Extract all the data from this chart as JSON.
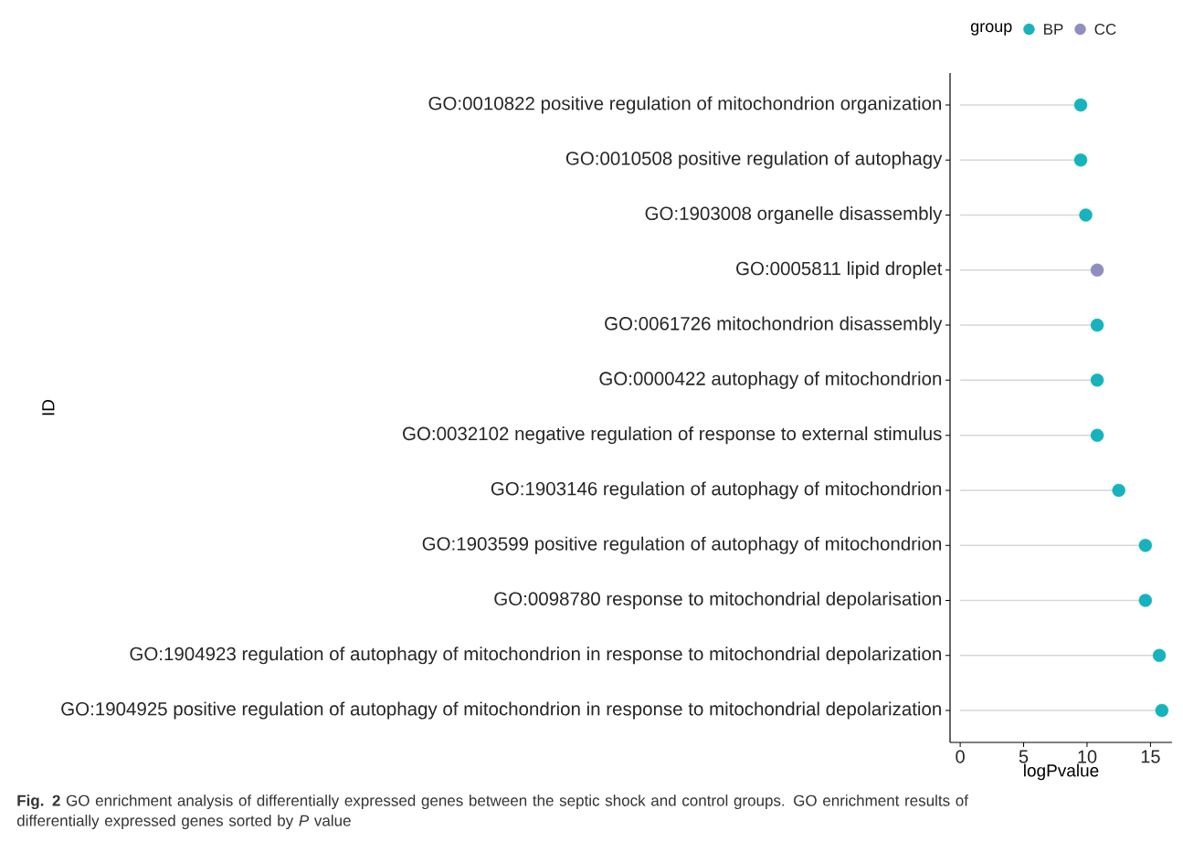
{
  "chart_data": {
    "type": "lollipop",
    "categories": [
      "GO:0010822 positive regulation of mitochondrion organization",
      "GO:0010508 positive regulation of autophagy",
      "GO:1903008 organelle disassembly",
      "GO:0005811 lipid droplet",
      "GO:0061726 mitochondrion disassembly",
      "GO:0000422 autophagy of mitochondrion",
      "GO:0032102 negative regulation of response to external stimulus",
      "GO:1903146 regulation of autophagy of mitochondrion",
      "GO:1903599 positive regulation of autophagy of mitochondrion",
      "GO:0098780 response to mitochondrial depolarisation",
      "GO:1904923 regulation of autophagy of mitochondrion in response to mitochondrial depolarization",
      "GO:1904925 positive regulation of autophagy of mitochondrion in response to mitochondrial depolarization"
    ],
    "orientation": "horizontal",
    "series": [
      {
        "name": "BP",
        "color": "#17b3bd",
        "values": [
          9.5,
          9.5,
          9.9,
          null,
          10.8,
          10.8,
          10.8,
          12.5,
          14.6,
          14.6,
          15.7,
          15.9
        ]
      },
      {
        "name": "CC",
        "color": "#8f8fbf",
        "values": [
          null,
          null,
          null,
          10.8,
          null,
          null,
          null,
          null,
          null,
          null,
          null,
          null
        ]
      }
    ],
    "xlim": [
      -0.8,
      16.7
    ],
    "xticks": [
      0,
      5,
      10,
      15
    ],
    "xlabel": "logPvalue",
    "ylabel": "ID",
    "legend_title": "group",
    "legend": "top right",
    "marker": "circle",
    "annotations": [
      "**Fig. 2** GO enrichment analysis of differentially expressed genes between the septic shock and control groups. GO enrichment results of differentially expressed genes sorted by *P* value"
    ]
  }
}
